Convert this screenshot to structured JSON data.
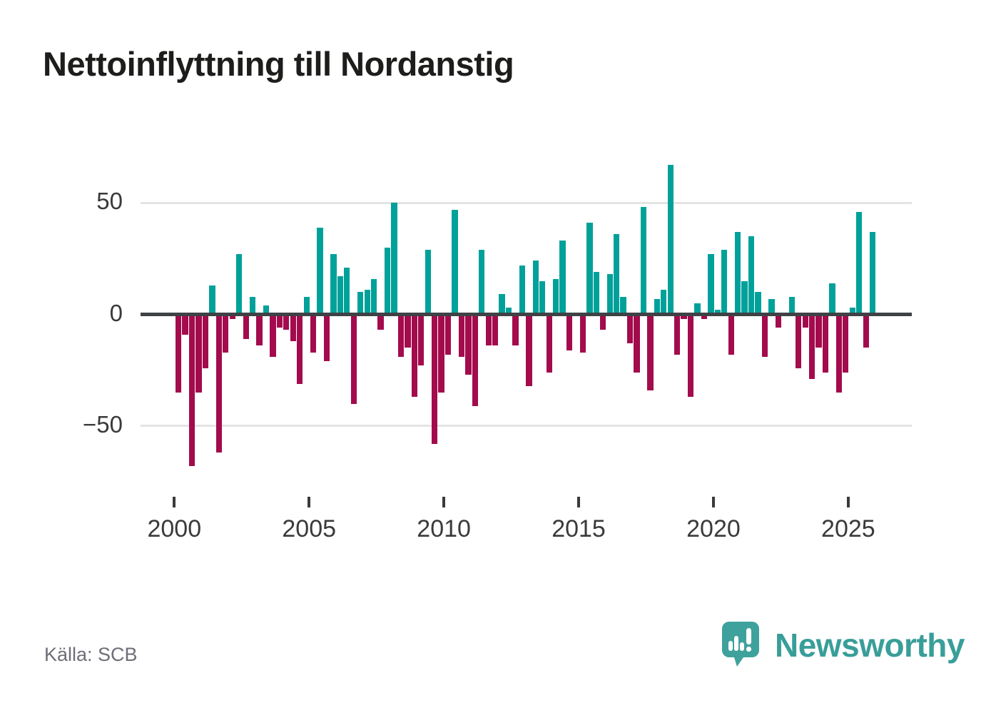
{
  "title": "Nettoinflyttning till Nordanstig",
  "source_text": "Källa: SCB",
  "branding": {
    "logo_text": "Newsworthy",
    "logo_icon": "newsworthy-speech-bubble-chart-icon"
  },
  "colors": {
    "positive": "#00a19a",
    "negative": "#a30b4d",
    "grid": "#e4e4e4",
    "zero_line": "#3f4245",
    "axis_text": "#3a3a3a",
    "title_text": "#1d1d1b",
    "source_text": "#6e6e78",
    "brand": "#399e99"
  },
  "chart_data": {
    "type": "bar",
    "title": "Nettoinflyttning till Nordanstig",
    "x_unit": "quarter",
    "categories": [
      "2000 Q1",
      "2000 Q2",
      "2000 Q3",
      "2000 Q4",
      "2001 Q1",
      "2001 Q2",
      "2001 Q3",
      "2001 Q4",
      "2002 Q1",
      "2002 Q2",
      "2002 Q3",
      "2002 Q4",
      "2003 Q1",
      "2003 Q2",
      "2003 Q3",
      "2003 Q4",
      "2004 Q1",
      "2004 Q2",
      "2004 Q3",
      "2004 Q4",
      "2005 Q1",
      "2005 Q2",
      "2005 Q3",
      "2005 Q4",
      "2006 Q1",
      "2006 Q2",
      "2006 Q3",
      "2006 Q4",
      "2007 Q1",
      "2007 Q2",
      "2007 Q3",
      "2007 Q4",
      "2008 Q1",
      "2008 Q2",
      "2008 Q3",
      "2008 Q4",
      "2009 Q1",
      "2009 Q2",
      "2009 Q3",
      "2009 Q4",
      "2010 Q1",
      "2010 Q2",
      "2010 Q3",
      "2010 Q4",
      "2011 Q1",
      "2011 Q2",
      "2011 Q3",
      "2011 Q4",
      "2012 Q1",
      "2012 Q2",
      "2012 Q3",
      "2012 Q4",
      "2013 Q1",
      "2013 Q2",
      "2013 Q3",
      "2013 Q4",
      "2014 Q1",
      "2014 Q2",
      "2014 Q3",
      "2014 Q4",
      "2015 Q1",
      "2015 Q2",
      "2015 Q3",
      "2015 Q4",
      "2016 Q1",
      "2016 Q2",
      "2016 Q3",
      "2016 Q4",
      "2017 Q1",
      "2017 Q2",
      "2017 Q3",
      "2017 Q4",
      "2018 Q1",
      "2018 Q2",
      "2018 Q3",
      "2018 Q4",
      "2019 Q1",
      "2019 Q2",
      "2019 Q3",
      "2019 Q4",
      "2020 Q1",
      "2020 Q2",
      "2020 Q3",
      "2020 Q4",
      "2021 Q1",
      "2021 Q2",
      "2021 Q3",
      "2021 Q4",
      "2022 Q1",
      "2022 Q2",
      "2022 Q3",
      "2022 Q4",
      "2023 Q1",
      "2023 Q2",
      "2023 Q3",
      "2023 Q4",
      "2024 Q1",
      "2024 Q2",
      "2024 Q3",
      "2024 Q4",
      "2025 Q1",
      "2025 Q2",
      "2025 Q3",
      "2025 Q4"
    ],
    "values": [
      -35,
      -9,
      -68,
      -35,
      -24,
      13,
      -62,
      -17,
      -2,
      27,
      -11,
      8,
      -14,
      4,
      -19,
      -6,
      -7,
      -12,
      -31,
      8,
      -17,
      39,
      -21,
      27,
      17,
      21,
      -40,
      10,
      11,
      16,
      -7,
      30,
      50,
      -19,
      -15,
      -37,
      -23,
      29,
      -58,
      -35,
      -18,
      47,
      -19,
      -27,
      -41,
      29,
      -14,
      -14,
      9,
      3,
      -14,
      22,
      -32,
      24,
      15,
      -26,
      16,
      33,
      -16,
      0,
      -17,
      41,
      19,
      -7,
      18,
      36,
      8,
      -13,
      -26,
      48,
      -34,
      7,
      11,
      67,
      -18,
      -2,
      -37,
      5,
      -2,
      27,
      2,
      29,
      -18,
      37,
      15,
      35,
      10,
      -19,
      7,
      -6,
      0,
      8,
      -24,
      -6,
      -29,
      -15,
      -26,
      14,
      -35,
      -26,
      3,
      46,
      -15,
      37
    ],
    "positive_color": "#00a19a",
    "negative_color": "#a30b4d",
    "yticks": [
      50,
      0,
      -50
    ],
    "ytick_labels": [
      "50",
      "0",
      "−50"
    ],
    "xtick_years": [
      2000,
      2005,
      2010,
      2015,
      2020,
      2025
    ],
    "xtick_labels": [
      "2000",
      "2005",
      "2010",
      "2015",
      "2020",
      "2025"
    ],
    "ylim": [
      -75,
      72
    ],
    "grid": "horizontal",
    "legend": "none"
  }
}
